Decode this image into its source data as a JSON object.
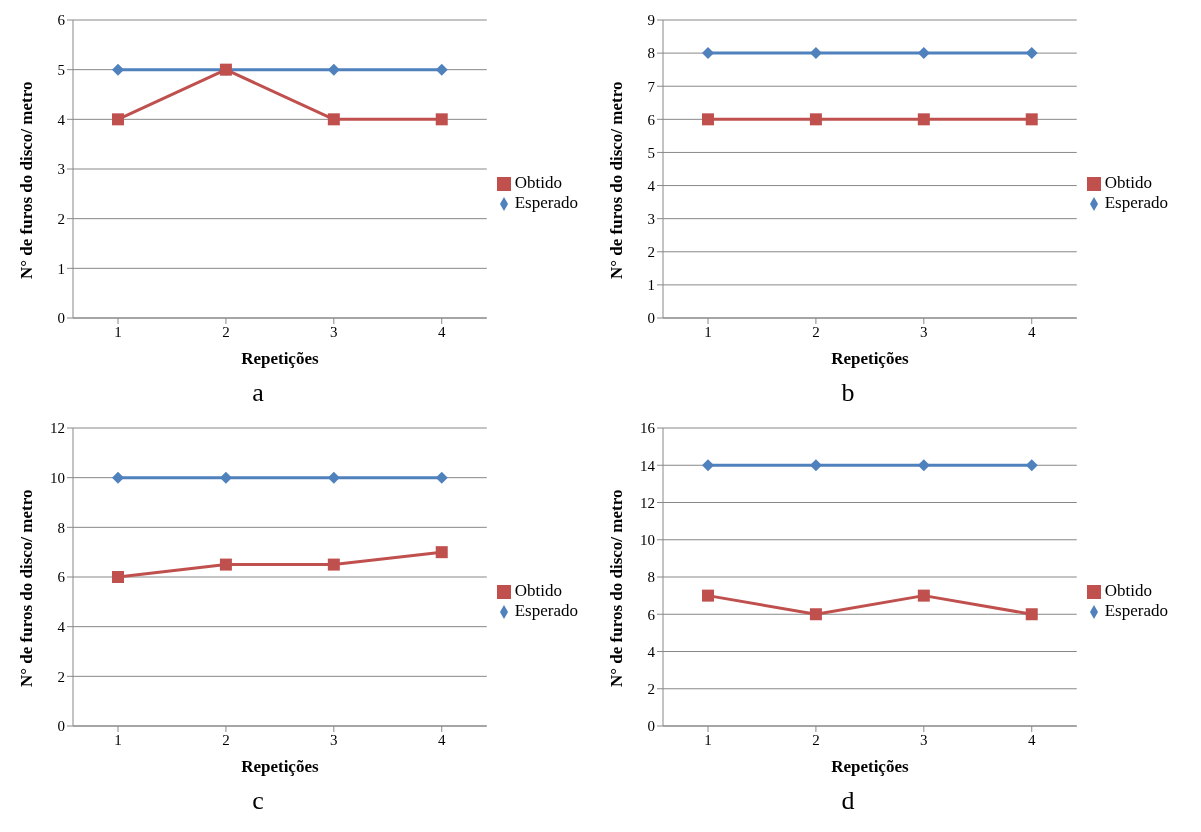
{
  "chart_data": [
    {
      "type": "line",
      "xlabel": "Repetições",
      "ylabel": "N° de furos do disco/ metro",
      "categories": [
        "1",
        "2",
        "3",
        "4"
      ],
      "ylim": [
        0,
        6
      ],
      "yticks": [
        0,
        1,
        2,
        3,
        4,
        5,
        6
      ],
      "grid": "y",
      "legend": "right",
      "annotations": [
        "a"
      ],
      "series": [
        {
          "name": "Obtido",
          "color": "#c0504d",
          "marker": "square",
          "values": [
            4,
            5,
            4,
            4
          ]
        },
        {
          "name": "Esperado",
          "color": "#4f81bd",
          "marker": "diamond",
          "values": [
            5,
            5,
            5,
            5
          ]
        }
      ]
    },
    {
      "type": "line",
      "xlabel": "Repetições",
      "ylabel": "N° de furos do disco/ metro",
      "categories": [
        "1",
        "2",
        "3",
        "4"
      ],
      "ylim": [
        0,
        9
      ],
      "yticks": [
        0,
        1,
        2,
        3,
        4,
        5,
        6,
        7,
        8,
        9
      ],
      "grid": "y",
      "legend": "right",
      "annotations": [
        "b"
      ],
      "series": [
        {
          "name": "Obtido",
          "color": "#c0504d",
          "marker": "square",
          "values": [
            6,
            6,
            6,
            6
          ]
        },
        {
          "name": "Esperado",
          "color": "#4f81bd",
          "marker": "diamond",
          "values": [
            8,
            8,
            8,
            8
          ]
        }
      ]
    },
    {
      "type": "line",
      "xlabel": "Repetições",
      "ylabel": "N° de furos do disco/ metro",
      "categories": [
        "1",
        "2",
        "3",
        "4"
      ],
      "ylim": [
        0,
        12
      ],
      "yticks": [
        0,
        2,
        4,
        6,
        8,
        10,
        12
      ],
      "grid": "y",
      "legend": "right",
      "annotations": [
        "c"
      ],
      "series": [
        {
          "name": "Obtido",
          "color": "#c0504d",
          "marker": "square",
          "values": [
            6,
            6.5,
            6.5,
            7
          ]
        },
        {
          "name": "Esperado",
          "color": "#4f81bd",
          "marker": "diamond",
          "values": [
            10,
            10,
            10,
            10
          ]
        }
      ]
    },
    {
      "type": "line",
      "xlabel": "Repetições",
      "ylabel": "N° de furos do disco/ metro",
      "categories": [
        "1",
        "2",
        "3",
        "4"
      ],
      "ylim": [
        0,
        16
      ],
      "yticks": [
        0,
        2,
        4,
        6,
        8,
        10,
        12,
        14,
        16
      ],
      "grid": "y",
      "legend": "right",
      "annotations": [
        "d"
      ],
      "series": [
        {
          "name": "Obtido",
          "color": "#c0504d",
          "marker": "square",
          "values": [
            7,
            6,
            7,
            6
          ]
        },
        {
          "name": "Esperado",
          "color": "#4f81bd",
          "marker": "diamond",
          "values": [
            14,
            14,
            14,
            14
          ]
        }
      ]
    }
  ]
}
